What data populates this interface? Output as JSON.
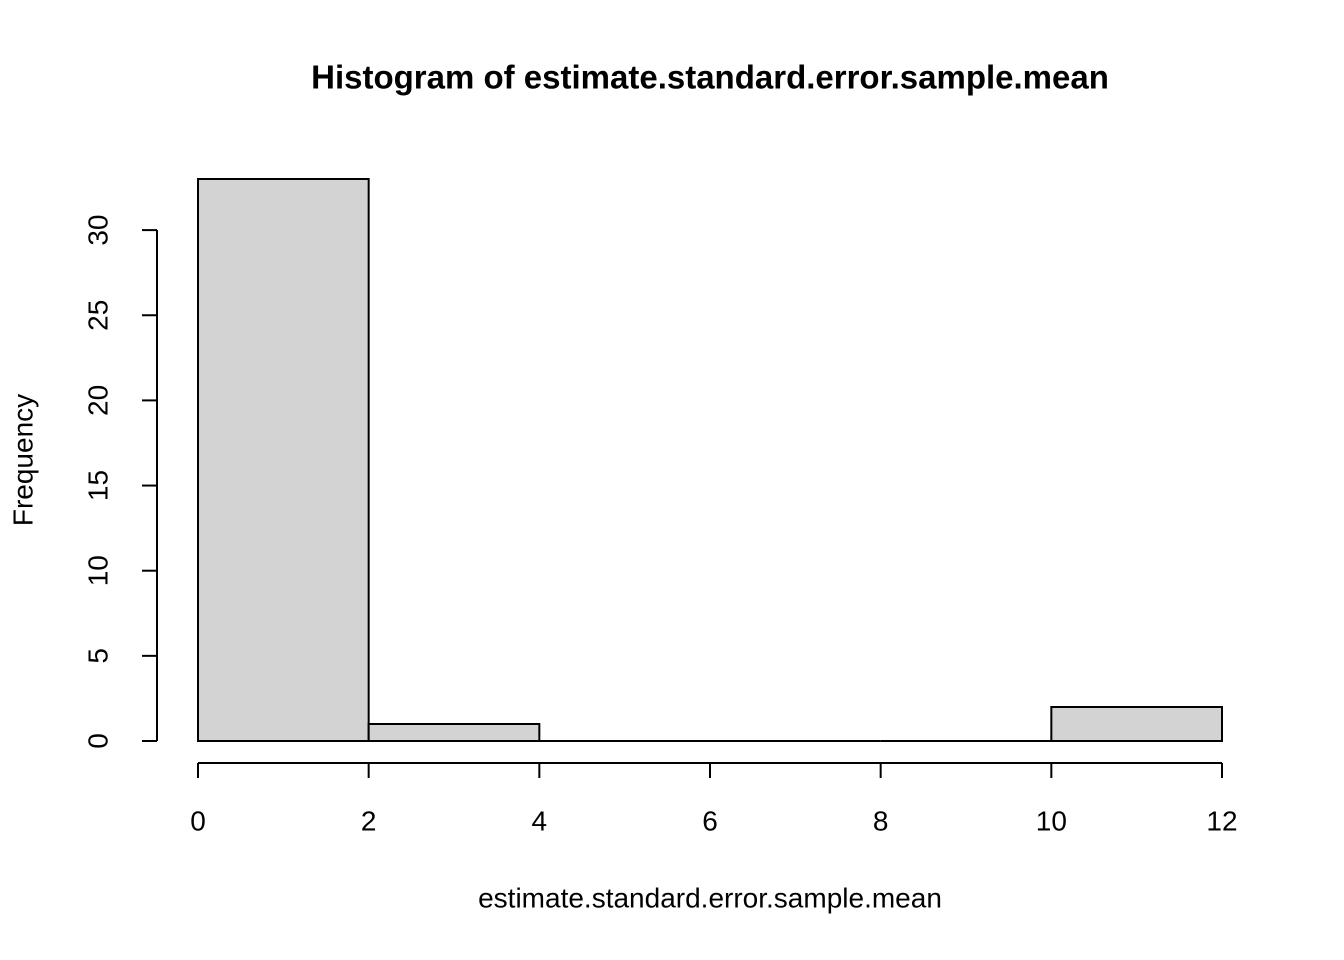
{
  "chart_data": {
    "type": "histogram",
    "title": "Histogram of estimate.standard.error.sample.mean",
    "x_label": "estimate.standard.error.sample.mean",
    "y_label": "Frequency",
    "bins": [
      0,
      2,
      4,
      6,
      8,
      10,
      12
    ],
    "counts": [
      33,
      1,
      0,
      0,
      0,
      2
    ],
    "color": "#d3d3d3",
    "xlim": [
      0,
      12
    ],
    "xticks": [
      0,
      2,
      4,
      6,
      8,
      10,
      12
    ],
    "ylim": [
      0,
      34
    ],
    "yticks": [
      0,
      5,
      10,
      15,
      20,
      25,
      30
    ]
  }
}
